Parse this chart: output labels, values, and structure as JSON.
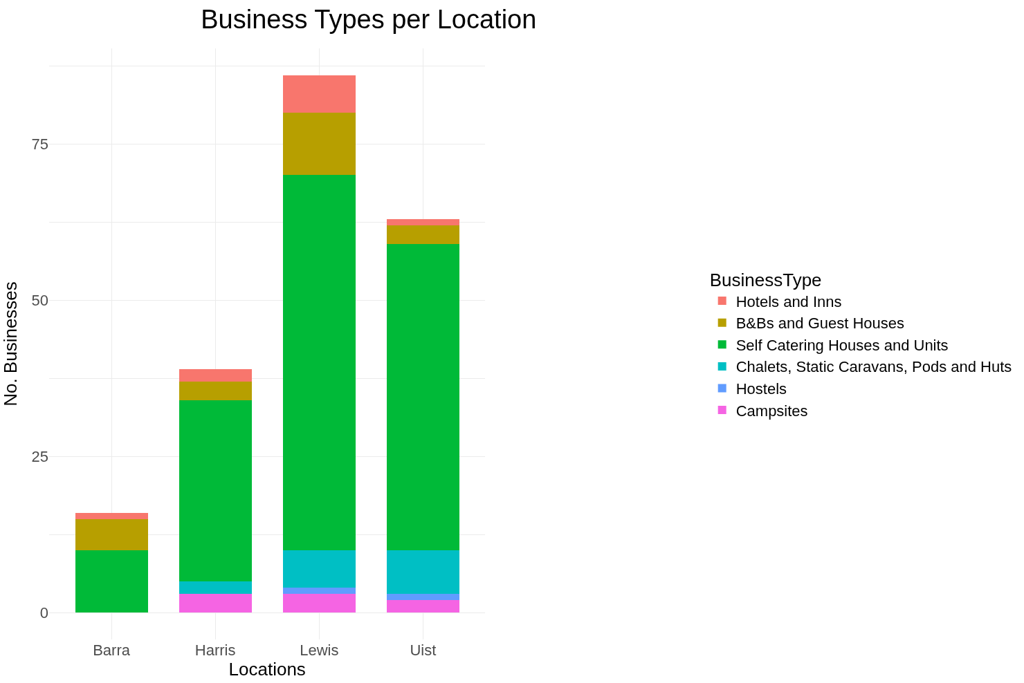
{
  "chart_data": {
    "type": "bar",
    "title": "Business Types per Location",
    "xlabel": "Locations",
    "ylabel": "No. Businesses",
    "legend_title": "BusinessType",
    "categories": [
      "Barra",
      "Harris",
      "Lewis",
      "Uist"
    ],
    "stacked": true,
    "series": [
      {
        "name": "Campsites",
        "color": "#f564e3",
        "values": [
          0,
          3,
          3,
          2
        ]
      },
      {
        "name": "Hostels",
        "color": "#619cff",
        "values": [
          0,
          0,
          1,
          1
        ]
      },
      {
        "name": "Chalets, Static Caravans, Pods and Huts",
        "color": "#00bfc4",
        "values": [
          0,
          2,
          6,
          7
        ]
      },
      {
        "name": "Self Catering Houses and Units",
        "color": "#00ba38",
        "values": [
          10,
          29,
          60,
          49
        ]
      },
      {
        "name": "B&Bs and Guest Houses",
        "color": "#b79f00",
        "values": [
          5,
          3,
          10,
          3
        ]
      },
      {
        "name": "Hotels and Inns",
        "color": "#f8766d",
        "values": [
          1,
          2,
          6,
          1
        ]
      }
    ],
    "ylim": [
      -4.3,
      90.3
    ],
    "yticks": [
      0,
      {
        "value": 12.5,
        "label": null
      },
      25,
      {
        "value": 37.5,
        "label": null
      },
      50,
      {
        "value": 62.5,
        "label": null
      },
      75,
      {
        "value": 87.5,
        "label": null
      }
    ],
    "grid": true,
    "legend": "right"
  }
}
